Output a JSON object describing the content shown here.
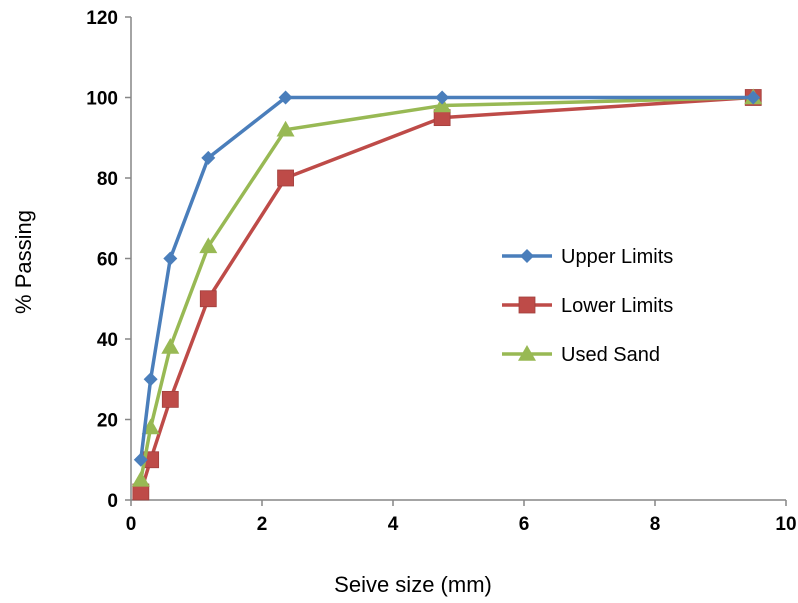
{
  "chart_data": {
    "type": "line",
    "xlabel": "Seive size (mm)",
    "ylabel": "% Passing",
    "xlim": [
      0,
      10
    ],
    "ylim": [
      0,
      120
    ],
    "xticks": [
      "0",
      "2",
      "4",
      "6",
      "8",
      "10"
    ],
    "yticks": [
      "0",
      "20",
      "40",
      "60",
      "80",
      "100",
      "120"
    ],
    "grid": false,
    "legend_position": "center-right",
    "series": [
      {
        "name": "Upper Limits",
        "color": "#4a7ebb",
        "marker": "diamond",
        "x": [
          0.15,
          0.3,
          0.6,
          1.18,
          2.36,
          4.75,
          9.5
        ],
        "y": [
          10,
          30,
          60,
          85,
          100,
          100,
          100
        ]
      },
      {
        "name": "Lower Limits",
        "color": "#be4b48",
        "marker": "square",
        "x": [
          0.15,
          0.3,
          0.6,
          1.18,
          2.36,
          4.75,
          9.5
        ],
        "y": [
          2,
          10,
          25,
          50,
          80,
          95,
          100
        ]
      },
      {
        "name": "Used Sand",
        "color": "#98b954",
        "marker": "triangle",
        "x": [
          0.15,
          0.3,
          0.6,
          1.18,
          2.36,
          4.75,
          9.5
        ],
        "y": [
          5,
          18,
          38,
          63,
          92,
          98,
          100
        ]
      }
    ]
  }
}
